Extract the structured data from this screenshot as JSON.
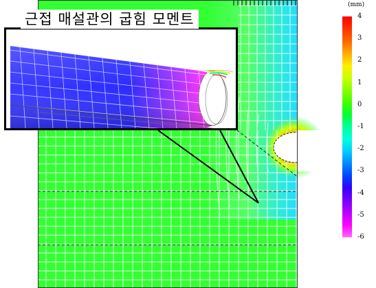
{
  "title": "근접 매설관의 굽힘 모멘트",
  "legend": {
    "unit": "(mm)",
    "ticks": [
      "4",
      "3",
      "2",
      "1",
      "0",
      "-1",
      "-2",
      "-3",
      "-4",
      "-5",
      "-6"
    ],
    "colors": [
      "#ff0000",
      "#ff3300",
      "#ff6600",
      "#ffaa00",
      "#ffee00",
      "#ccff00",
      "#88ff00",
      "#44ff00",
      "#00ff33",
      "#00ff99",
      "#00ffdd",
      "#00ccff",
      "#0088ff",
      "#0044ff",
      "#3300ff",
      "#7700ff",
      "#bb00ff",
      "#ff00ff",
      "#ff66ff"
    ]
  },
  "colors": {
    "mesh_green": "#33ff33",
    "mesh_line": "#ffffff",
    "pipe_blue": "#3333ff",
    "pipe_magenta": "#ff33ff",
    "hole_fill": "#ffffff"
  }
}
